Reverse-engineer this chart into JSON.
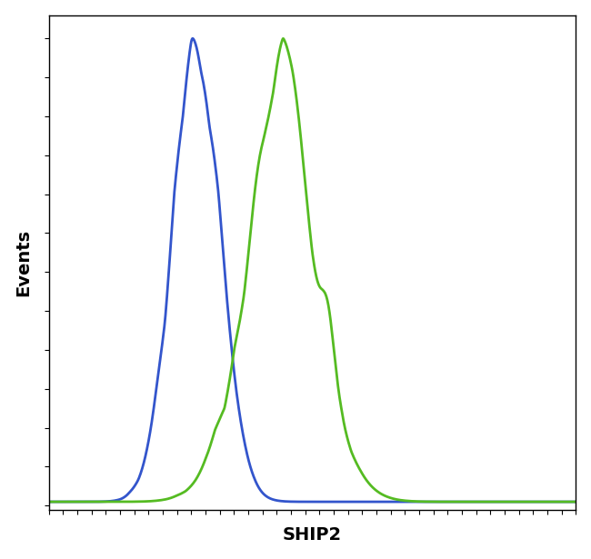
{
  "title": "",
  "xlabel": "SHIP2",
  "ylabel": "Events",
  "xlabel_fontsize": 14,
  "ylabel_fontsize": 14,
  "background_color": "#ffffff",
  "blue_color": "#3355cc",
  "green_color": "#55bb22",
  "xlim": [
    0,
    1
  ],
  "ylim": [
    -0.01,
    1.05
  ],
  "line_width": 2.0,
  "figsize": [
    6.5,
    6.15
  ],
  "dpi": 100
}
